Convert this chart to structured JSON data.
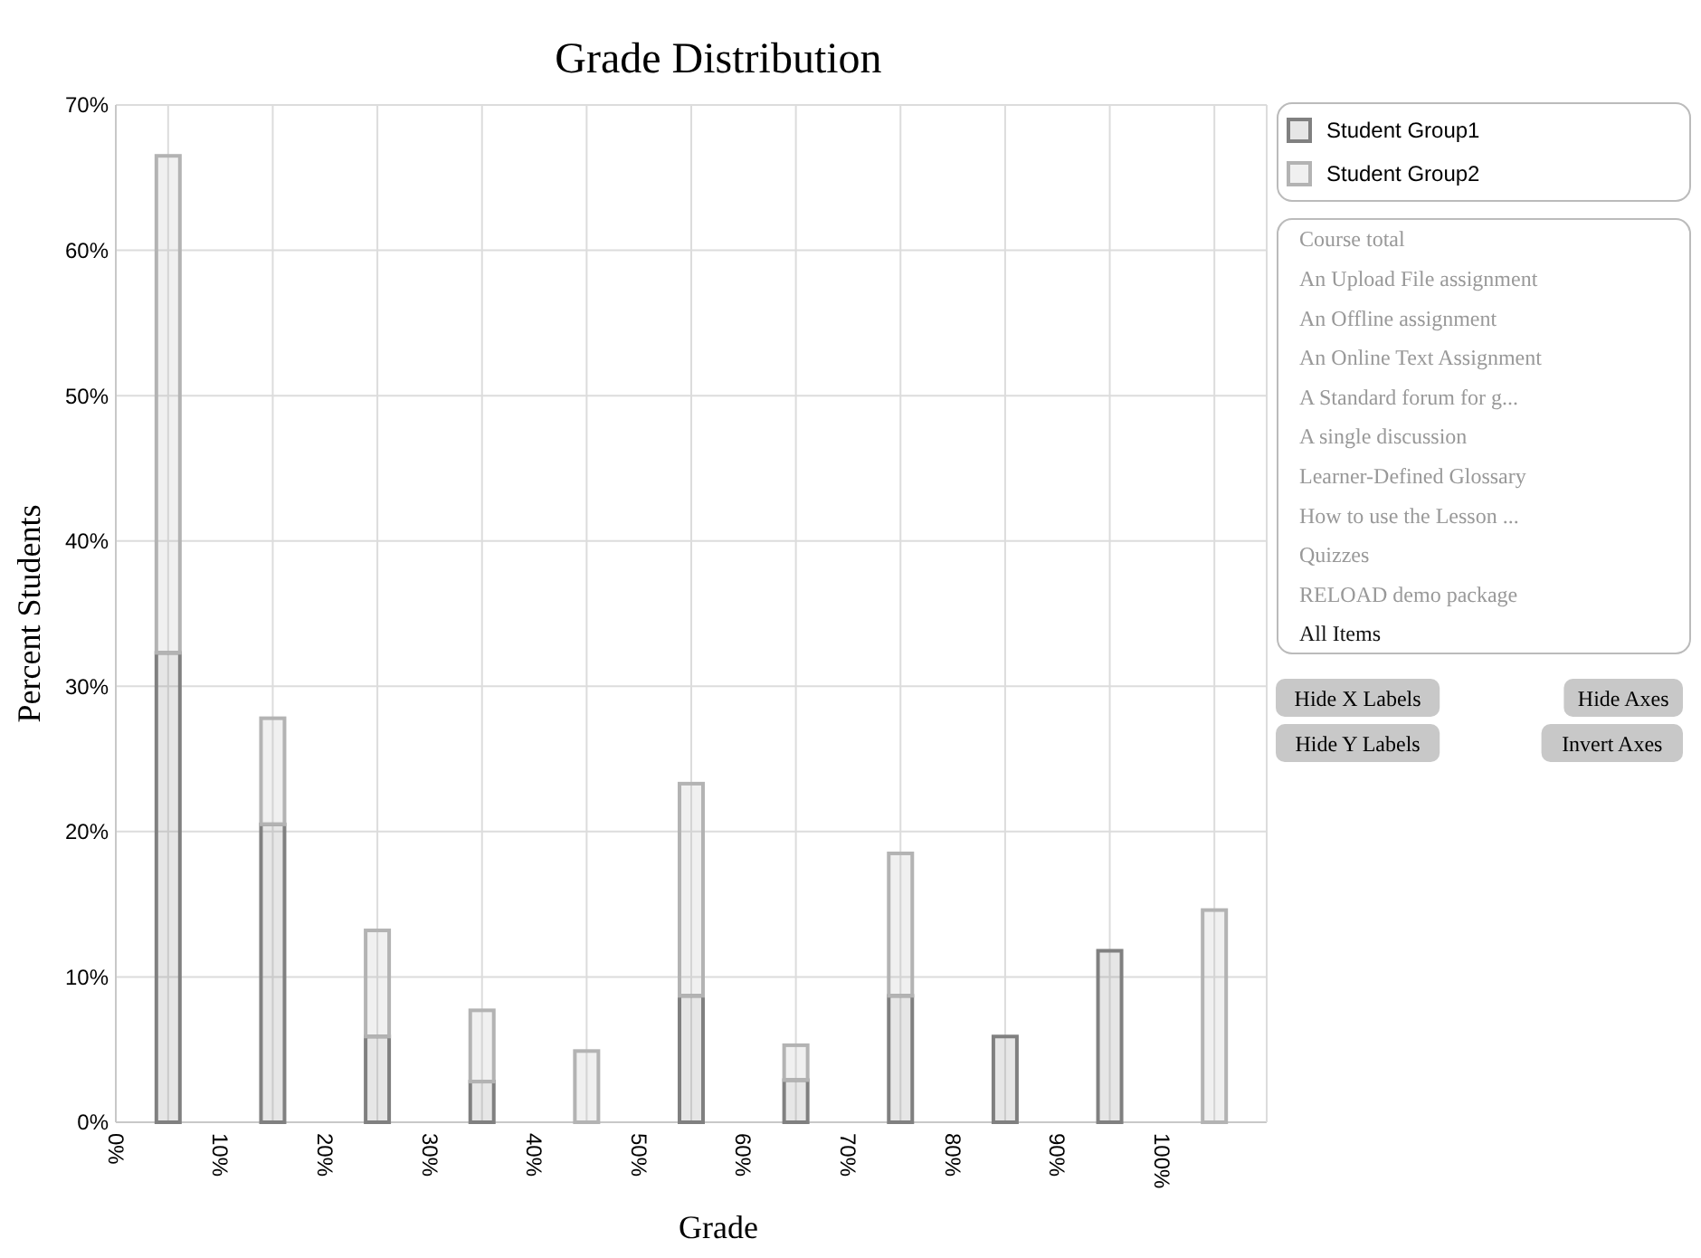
{
  "chart_data": {
    "type": "bar",
    "title": "Grade Distribution",
    "xlabel": "Grade",
    "ylabel": "Percent Students",
    "x": [
      5,
      15,
      25,
      35,
      45,
      55,
      65,
      75,
      85,
      95,
      105
    ],
    "stacked": true,
    "series": [
      {
        "name": "Student Group1",
        "color": "#808080",
        "values": [
          32.3,
          20.5,
          5.9,
          2.8,
          0,
          8.7,
          2.9,
          8.7,
          5.9,
          11.8,
          0
        ]
      },
      {
        "name": "Student Group2",
        "color": "#b3b3b3",
        "values": [
          34.2,
          7.3,
          7.3,
          4.9,
          4.9,
          14.6,
          2.4,
          9.8,
          0,
          0,
          14.6
        ]
      }
    ],
    "xlim": [
      0,
      110
    ],
    "ylim": [
      0,
      70
    ],
    "xticks": [
      {
        "value": 0,
        "label": "0%"
      },
      {
        "value": 10,
        "label": "10%"
      },
      {
        "value": 20,
        "label": "20%"
      },
      {
        "value": 30,
        "label": "30%"
      },
      {
        "value": 40,
        "label": "40%"
      },
      {
        "value": 50,
        "label": "50%"
      },
      {
        "value": 60,
        "label": "60%"
      },
      {
        "value": 70,
        "label": "70%"
      },
      {
        "value": 80,
        "label": "80%"
      },
      {
        "value": 90,
        "label": "90%"
      },
      {
        "value": 100,
        "label": "100%"
      }
    ],
    "yticks": [
      {
        "value": 0,
        "label": "0%"
      },
      {
        "value": 10,
        "label": "10%"
      },
      {
        "value": 20,
        "label": "20%"
      },
      {
        "value": 30,
        "label": "30%"
      },
      {
        "value": 40,
        "label": "40%"
      },
      {
        "value": 50,
        "label": "50%"
      },
      {
        "value": 60,
        "label": "60%"
      },
      {
        "value": 70,
        "label": "70%"
      }
    ],
    "grid": true,
    "legend": "top right",
    "annotations": [
      "Course total",
      "An Upload File assignment",
      "An Offline assignment",
      "An Online Text Assignment",
      "A Standard forum for g...",
      "A single discussion",
      "Learner-Defined Glossary",
      "How to use the Lesson ...",
      "Quizzes",
      "RELOAD demo package",
      "All Items",
      "Hide X Labels",
      "Hide Axes",
      "Hide Y Labels",
      "Invert Axes"
    ]
  }
}
